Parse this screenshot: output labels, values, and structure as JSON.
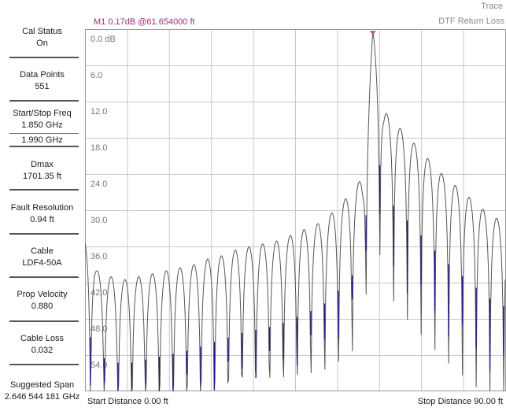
{
  "sidebar": {
    "items": [
      {
        "label": "Cal Status",
        "value": "On"
      },
      {
        "label": "Data Points",
        "value": "551"
      },
      {
        "label": "Start/Stop Freq",
        "value": "1.850 GHz",
        "value2": "1.990 GHz"
      },
      {
        "label": "Dmax",
        "value": "1701.35 ft"
      },
      {
        "label": "Fault Resolution",
        "value": "0.94 ft"
      },
      {
        "label": "Cable",
        "value": "LDF4-50A"
      },
      {
        "label": "Prop Velocity",
        "value": "0.880"
      },
      {
        "label": "Cable Loss",
        "value": "0.032"
      },
      {
        "label": "Suggested Span",
        "value": "2.646 544 181 GHz"
      }
    ]
  },
  "header": {
    "trace_label": "Trace",
    "trace_name": "DTF Return Loss",
    "marker_readout": "M1  0.17dB @61.654000 ft"
  },
  "footer": {
    "start": "Start Distance 0.00 ft",
    "stop": "Stop Distance 90.00 ft"
  },
  "chart_data": {
    "type": "line",
    "title": "DTF Return Loss",
    "xlabel": "",
    "ylabel": "",
    "x_range": [
      0,
      90
    ],
    "x_units": "ft",
    "y_ticks": [
      "0.0 dB",
      "6.0",
      "12.0",
      "18.0",
      "24.0",
      "30.0",
      "36.0",
      "42.0",
      "48.0",
      "54.0"
    ],
    "ylim": [
      0,
      60
    ],
    "y_inverted": true,
    "grid": true,
    "colors": {
      "trace": "#555555",
      "nulls": "#1a1a8c",
      "marker": "#c04aa0",
      "grid": "#c8c8c8"
    },
    "marker": {
      "name": "M1",
      "x": 61.654,
      "y": 0.17
    },
    "series": [
      {
        "x": [
          0,
          0.5,
          2.5,
          5.5,
          8.5,
          11.5,
          14.5,
          17.5,
          20.5,
          23.5,
          26.5,
          29.5,
          32.5,
          35.5,
          38.5,
          41.5,
          44.5,
          47.5,
          50.5,
          53.5,
          56.5,
          59.5,
          61.654,
          64.0,
          67.0,
          70.0,
          73.5,
          76.5,
          79.5,
          82.5,
          85.5,
          88.5,
          90.0
        ],
        "y": [
          35.0,
          35.5,
          40.0,
          41.0,
          41.5,
          41.0,
          40.5,
          40.0,
          39.5,
          39.0,
          38.0,
          37.5,
          36.5,
          36.0,
          35.5,
          35.0,
          34.0,
          33.0,
          32.0,
          30.0,
          27.5,
          24.5,
          0.17,
          13.5,
          16.0,
          18.5,
          21.5,
          24.0,
          26.0,
          28.0,
          30.0,
          31.5,
          32.0
        ]
      }
    ]
  }
}
